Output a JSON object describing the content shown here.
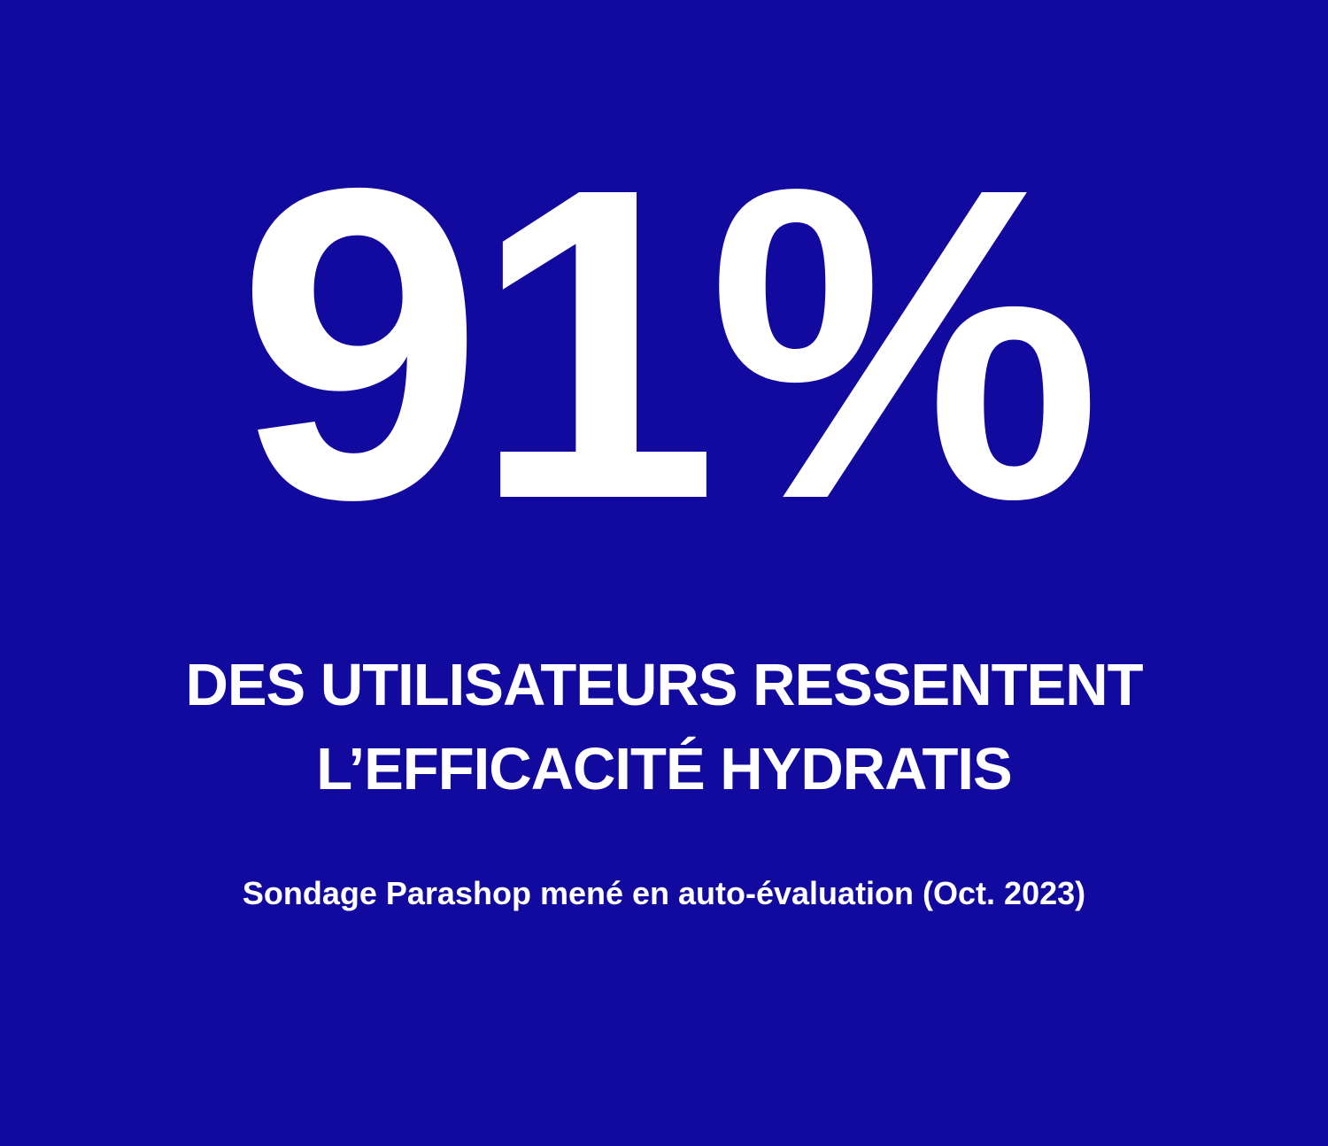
{
  "theme": {
    "background_color": "#120A9E",
    "text_color": "#FFFFFF"
  },
  "stat": {
    "value": "91%",
    "headline_line1": "DES UTILISATEURS RESSENTENT",
    "headline_line2": "L’EFFICACITÉ HYDRATIS",
    "source": "Sondage Parashop mené en auto-évaluation (Oct. 2023)"
  }
}
